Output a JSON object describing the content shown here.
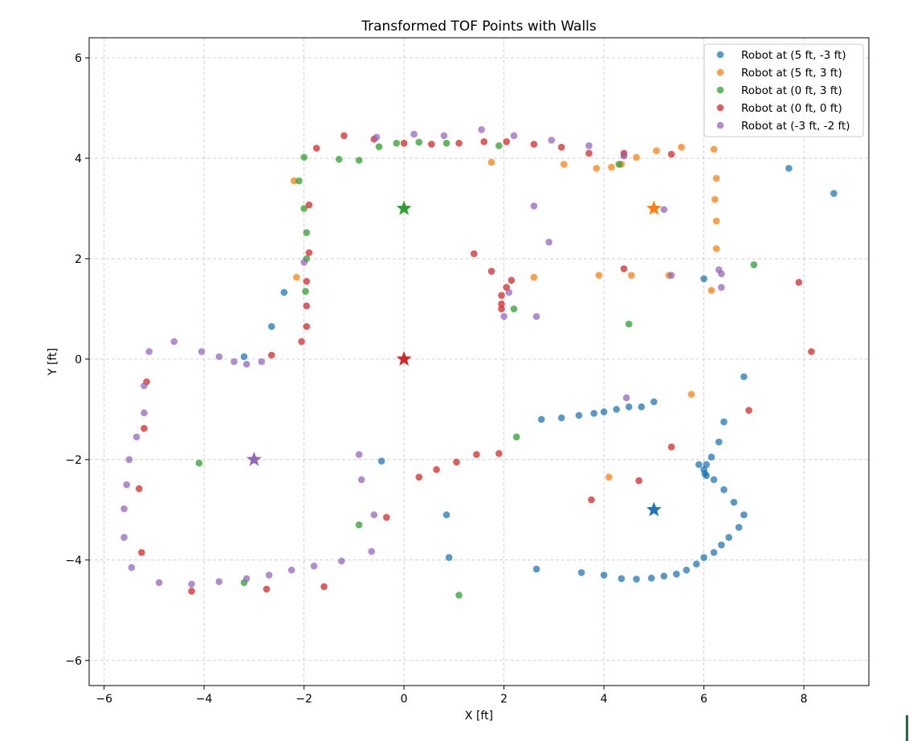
{
  "chart_data": {
    "type": "scatter",
    "title": "Transformed TOF Points with Walls",
    "xlabel": "X [ft]",
    "ylabel": "Y [ft]",
    "xlim": [
      -6.3,
      9.3
    ],
    "ylim": [
      -6.5,
      6.4
    ],
    "xticks": [
      -6,
      -4,
      -2,
      0,
      2,
      4,
      6,
      8
    ],
    "yticks": [
      -6,
      -4,
      -2,
      0,
      2,
      4,
      6
    ],
    "xtick_labels": [
      "−6",
      "−4",
      "−2",
      "0",
      "2",
      "4",
      "6",
      "8"
    ],
    "ytick_labels": [
      "−6",
      "−4",
      "−2",
      "0",
      "2",
      "4",
      "6"
    ],
    "grid": true,
    "legend_position": "top-right",
    "series": [
      {
        "name": "Robot at (5 ft, -3 ft)",
        "color": "#1f77b4",
        "robot": [
          5,
          -3
        ],
        "points": [
          [
            7.7,
            3.8
          ],
          [
            8.6,
            3.3
          ],
          [
            6.0,
            1.6
          ],
          [
            6.8,
            -0.35
          ],
          [
            5.0,
            -0.85
          ],
          [
            4.75,
            -0.95
          ],
          [
            4.5,
            -0.95
          ],
          [
            4.25,
            -1.0
          ],
          [
            4.0,
            -1.05
          ],
          [
            3.8,
            -1.08
          ],
          [
            3.5,
            -1.12
          ],
          [
            3.15,
            -1.17
          ],
          [
            2.75,
            -1.2
          ],
          [
            6.4,
            -1.25
          ],
          [
            6.3,
            -1.65
          ],
          [
            6.15,
            -1.95
          ],
          [
            6.05,
            -2.1
          ],
          [
            5.9,
            -2.1
          ],
          [
            6.0,
            -2.2
          ],
          [
            6.02,
            -2.28
          ],
          [
            6.05,
            -2.32
          ],
          [
            6.2,
            -2.4
          ],
          [
            6.4,
            -2.6
          ],
          [
            6.6,
            -2.85
          ],
          [
            6.8,
            -3.1
          ],
          [
            6.7,
            -3.35
          ],
          [
            6.5,
            -3.55
          ],
          [
            6.35,
            -3.7
          ],
          [
            6.2,
            -3.85
          ],
          [
            6.0,
            -3.95
          ],
          [
            5.85,
            -4.08
          ],
          [
            5.65,
            -4.2
          ],
          [
            5.45,
            -4.28
          ],
          [
            5.2,
            -4.32
          ],
          [
            4.95,
            -4.36
          ],
          [
            4.65,
            -4.38
          ],
          [
            4.35,
            -4.37
          ],
          [
            4.0,
            -4.3
          ],
          [
            3.55,
            -4.25
          ],
          [
            2.65,
            -4.18
          ],
          [
            0.85,
            -3.1
          ],
          [
            0.9,
            -3.95
          ],
          [
            -0.45,
            -2.03
          ],
          [
            -2.65,
            0.65
          ],
          [
            -3.2,
            0.05
          ],
          [
            -2.4,
            1.33
          ]
        ]
      },
      {
        "name": "Robot at (5 ft, 3 ft)",
        "color": "#ff7f0e",
        "robot": [
          5,
          3
        ],
        "points": [
          [
            -2.2,
            3.55
          ],
          [
            1.75,
            3.92
          ],
          [
            3.2,
            3.88
          ],
          [
            3.85,
            3.8
          ],
          [
            4.15,
            3.82
          ],
          [
            4.35,
            3.88
          ],
          [
            4.65,
            4.02
          ],
          [
            5.05,
            4.15
          ],
          [
            5.55,
            4.22
          ],
          [
            6.2,
            4.18
          ],
          [
            6.25,
            3.6
          ],
          [
            6.22,
            3.18
          ],
          [
            6.25,
            2.75
          ],
          [
            6.25,
            2.2
          ],
          [
            6.15,
            1.37
          ],
          [
            4.55,
            1.67
          ],
          [
            3.9,
            1.67
          ],
          [
            2.6,
            1.63
          ],
          [
            -2.15,
            1.63
          ],
          [
            5.75,
            -0.7
          ],
          [
            4.1,
            -2.35
          ],
          [
            5.3,
            1.67
          ],
          [
            4.4,
            4.05
          ]
        ]
      },
      {
        "name": "Robot at (0 ft, 3 ft)",
        "color": "#2ca02c",
        "robot": [
          0,
          3
        ],
        "points": [
          [
            -2.0,
            4.02
          ],
          [
            -1.3,
            3.98
          ],
          [
            -0.9,
            3.96
          ],
          [
            -0.5,
            4.23
          ],
          [
            -0.15,
            4.3
          ],
          [
            0.3,
            4.32
          ],
          [
            0.85,
            4.3
          ],
          [
            1.9,
            4.25
          ],
          [
            -2.1,
            3.55
          ],
          [
            -2.0,
            3.0
          ],
          [
            -1.95,
            2.52
          ],
          [
            -1.95,
            2.0
          ],
          [
            -1.97,
            1.35
          ],
          [
            2.2,
            1.0
          ],
          [
            4.5,
            0.7
          ],
          [
            7.0,
            1.88
          ],
          [
            4.3,
            3.88
          ],
          [
            2.25,
            -1.55
          ],
          [
            -4.1,
            -2.07
          ],
          [
            -0.9,
            -3.3
          ],
          [
            -3.2,
            -4.45
          ],
          [
            1.1,
            -4.7
          ]
        ]
      },
      {
        "name": "Robot at (0 ft, 0 ft)",
        "color": "#d62728",
        "robot": [
          0,
          0
        ],
        "points": [
          [
            -1.75,
            4.2
          ],
          [
            -1.2,
            4.45
          ],
          [
            -0.6,
            4.38
          ],
          [
            0.0,
            4.3
          ],
          [
            0.55,
            4.28
          ],
          [
            1.1,
            4.3
          ],
          [
            1.6,
            4.33
          ],
          [
            2.05,
            4.33
          ],
          [
            2.6,
            4.28
          ],
          [
            3.15,
            4.22
          ],
          [
            3.7,
            4.1
          ],
          [
            4.4,
            4.1
          ],
          [
            5.35,
            4.08
          ],
          [
            -1.9,
            3.07
          ],
          [
            -1.9,
            2.12
          ],
          [
            -1.95,
            1.55
          ],
          [
            -1.95,
            1.06
          ],
          [
            -1.95,
            0.65
          ],
          [
            -2.05,
            0.35
          ],
          [
            -2.65,
            0.08
          ],
          [
            1.4,
            2.1
          ],
          [
            1.75,
            1.75
          ],
          [
            2.15,
            1.57
          ],
          [
            2.05,
            1.43
          ],
          [
            1.95,
            1.27
          ],
          [
            1.95,
            1.1
          ],
          [
            1.95,
            1.0
          ],
          [
            4.4,
            1.8
          ],
          [
            7.9,
            1.53
          ],
          [
            8.15,
            0.15
          ],
          [
            6.9,
            -1.02
          ],
          [
            5.35,
            -1.75
          ],
          [
            4.7,
            -2.42
          ],
          [
            3.75,
            -2.8
          ],
          [
            1.9,
            -1.88
          ],
          [
            1.45,
            -1.9
          ],
          [
            1.05,
            -2.05
          ],
          [
            0.65,
            -2.2
          ],
          [
            0.3,
            -2.35
          ],
          [
            -0.35,
            -3.15
          ],
          [
            -5.15,
            -0.45
          ],
          [
            -5.2,
            -1.38
          ],
          [
            -5.3,
            -2.58
          ],
          [
            -5.25,
            -3.85
          ],
          [
            -4.25,
            -4.62
          ],
          [
            -2.75,
            -4.58
          ],
          [
            -1.6,
            -4.53
          ]
        ]
      },
      {
        "name": "Robot at (-3 ft, -2 ft)",
        "color": "#9467bd",
        "robot": [
          -3,
          -2
        ],
        "points": [
          [
            -0.55,
            4.42
          ],
          [
            0.2,
            4.48
          ],
          [
            0.8,
            4.45
          ],
          [
            1.55,
            4.57
          ],
          [
            2.2,
            4.45
          ],
          [
            2.95,
            4.36
          ],
          [
            3.7,
            4.25
          ],
          [
            4.4,
            4.05
          ],
          [
            2.6,
            3.05
          ],
          [
            5.2,
            2.98
          ],
          [
            2.9,
            2.33
          ],
          [
            -2.0,
            1.93
          ],
          [
            2.1,
            1.33
          ],
          [
            6.3,
            1.78
          ],
          [
            6.35,
            1.7
          ],
          [
            5.35,
            1.67
          ],
          [
            6.35,
            1.43
          ],
          [
            2.0,
            0.85
          ],
          [
            2.65,
            0.85
          ],
          [
            -5.1,
            0.15
          ],
          [
            -4.6,
            0.35
          ],
          [
            -4.05,
            0.15
          ],
          [
            -3.7,
            0.05
          ],
          [
            -3.4,
            -0.05
          ],
          [
            -3.15,
            -0.1
          ],
          [
            -2.85,
            -0.05
          ],
          [
            -5.2,
            -0.53
          ],
          [
            -5.2,
            -1.07
          ],
          [
            -5.35,
            -1.55
          ],
          [
            -5.5,
            -2.0
          ],
          [
            -5.55,
            -2.5
          ],
          [
            -5.6,
            -2.98
          ],
          [
            -5.6,
            -3.55
          ],
          [
            -5.45,
            -4.15
          ],
          [
            -4.9,
            -4.45
          ],
          [
            -4.25,
            -4.48
          ],
          [
            -3.7,
            -4.43
          ],
          [
            -3.15,
            -4.37
          ],
          [
            -2.7,
            -4.3
          ],
          [
            -2.25,
            -4.2
          ],
          [
            -1.8,
            -4.12
          ],
          [
            -1.25,
            -4.02
          ],
          [
            -0.65,
            -3.83
          ],
          [
            -0.6,
            -3.1
          ],
          [
            -0.85,
            -2.4
          ],
          [
            -0.9,
            -1.9
          ],
          [
            4.45,
            -0.77
          ]
        ]
      }
    ]
  }
}
